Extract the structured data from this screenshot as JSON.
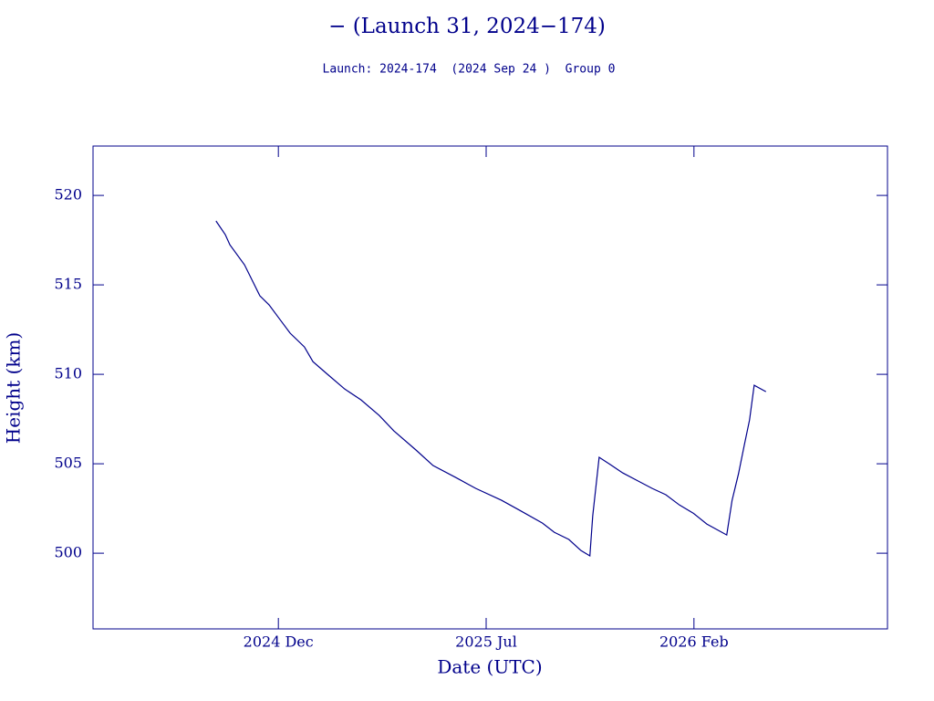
{
  "chart_data": {
    "type": "line",
    "title": "− (Launch 31, 2024−174)",
    "subtitle": "Launch: 2024-174  (2024 Sep 24 )  Group 0",
    "x_label": "Date (UTC)",
    "y_label": "Height (km)",
    "color": "#00008b",
    "x": [
      2024.742,
      2024.768,
      2024.781,
      2024.822,
      2024.865,
      2024.891,
      2024.916,
      2024.95,
      2024.99,
      2025.014,
      2025.052,
      2025.103,
      2025.149,
      2025.2,
      2025.241,
      2025.303,
      2025.351,
      2025.415,
      2025.471,
      2025.543,
      2025.594,
      2025.658,
      2025.691,
      2025.732,
      2025.766,
      2025.791,
      2025.799,
      2025.817,
      2025.845,
      2025.883,
      2025.927,
      2025.966,
      2026.004,
      2026.042,
      2026.081,
      2026.119,
      2026.175,
      2026.19,
      2026.208,
      2026.224,
      2026.239,
      2026.252,
      2026.285
    ],
    "values": [
      518.57,
      517.81,
      517.24,
      516.12,
      514.39,
      513.88,
      513.21,
      512.3,
      511.53,
      510.71,
      510.05,
      509.18,
      508.57,
      507.7,
      506.84,
      505.77,
      504.9,
      504.23,
      503.62,
      502.96,
      502.4,
      501.68,
      501.17,
      500.77,
      500.15,
      499.85,
      502.09,
      505.36,
      505.0,
      504.49,
      504.03,
      503.62,
      503.27,
      502.7,
      502.24,
      501.63,
      501.02,
      502.96,
      504.44,
      506.02,
      507.45,
      509.39,
      509.03
    ],
    "xlim": [
      2024.397,
      2026.626
    ],
    "xticks": [
      {
        "value": 2024.917,
        "label": "2024 Dec"
      },
      {
        "value": 2025.5,
        "label": "2025 Jul"
      },
      {
        "value": 2026.083,
        "label": "2026 Feb"
      }
    ],
    "ylim": [
      495.77,
      522.76
    ],
    "yticks": [
      500,
      505,
      510,
      515,
      520
    ]
  }
}
